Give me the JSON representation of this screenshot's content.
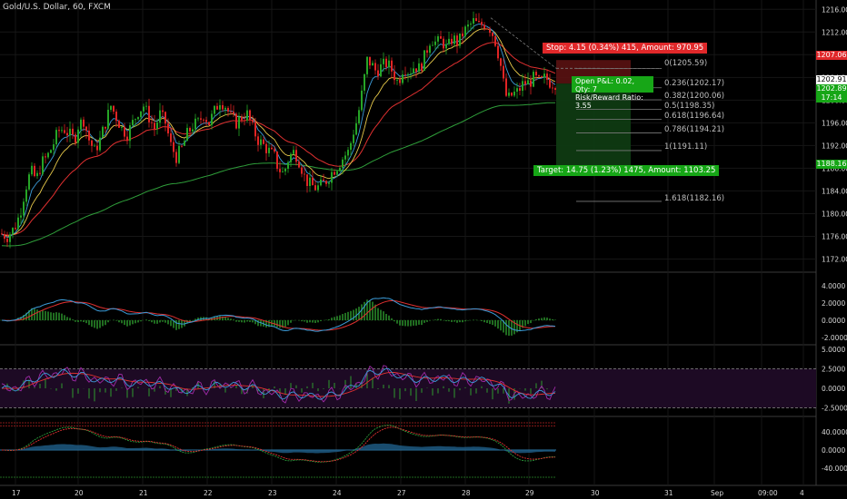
{
  "symbol": "Gold/U.S. Dollar, 60, FXCM",
  "colors": {
    "background": "#000000",
    "candle_up": "#26a526",
    "candle_down": "#e02424",
    "ema_fast": "#3b9bd8",
    "ema_mid": "#e6c84a",
    "ema_slow": "#e03030",
    "ema_long": "#2f9e3a",
    "stop_badge": "#e0282a",
    "target_badge": "#16a616",
    "grid": "#161616"
  },
  "price_axis": {
    "ticks": [
      "1216.00",
      "1212.00",
      "1208.00",
      "1204.00",
      "1200.00",
      "1196.00",
      "1192.00",
      "1188.00",
      "1184.00",
      "1180.00",
      "1176.00",
      "1172.00"
    ]
  },
  "price_tags": {
    "stop": "1207.06",
    "current": "1202.91",
    "bid": "1202.89",
    "timer": "17:14",
    "target": "1188.16"
  },
  "position": {
    "stop_label": "Stop: 4.15 (0.34%) 415, Amount: 970.95",
    "target_label": "Target: 14.75 (1.23%) 1475, Amount: 1103.25",
    "pnl_line1": "Open P&L: 0.02, Qty: 7",
    "pnl_line2": "Risk/Reward Ratio: 3.55"
  },
  "fib_levels": [
    "0(1205.59)",
    "0.236(1202.17)",
    "0.382(1200.06)",
    "0.5(1198.35)",
    "0.618(1196.64)",
    "0.786(1194.21)",
    "1(1191.11)",
    "1.618(1182.16)"
  ],
  "indicators": {
    "macd_ticks": [
      "4.0000",
      "2.0000",
      "0.0000",
      "-2.0000"
    ],
    "osc_ticks": [
      "5.0000",
      "2.5000",
      "0.0000",
      "-2.5000"
    ],
    "stoch_ticks": [
      "40.0000",
      "0.0000",
      "-40.0000"
    ]
  },
  "time_axis": [
    "17",
    "20",
    "21",
    "22",
    "23",
    "24",
    "27",
    "28",
    "29",
    "30",
    "31",
    "Sep",
    "09:00",
    "4"
  ],
  "chart_data": {
    "type": "candlestick",
    "title": "Gold/U.S. Dollar, 60, FXCM",
    "ylim": [
      1170,
      1217
    ],
    "x_labels": [
      "17",
      "20",
      "21",
      "22",
      "23",
      "24",
      "27",
      "28",
      "29",
      "30",
      "31",
      "Sep",
      "09:00",
      "4"
    ],
    "close_path": [
      [
        0,
        1176.5
      ],
      [
        8,
        1176
      ],
      [
        16,
        1177.5
      ],
      [
        22,
        1180
      ],
      [
        28,
        1184.5
      ],
      [
        34,
        1187.5
      ],
      [
        40,
        1186
      ],
      [
        46,
        1189
      ],
      [
        52,
        1190
      ],
      [
        58,
        1192
      ],
      [
        64,
        1194.5
      ],
      [
        70,
        1195
      ],
      [
        76,
        1194
      ],
      [
        82,
        1193
      ],
      [
        86,
        1195.5
      ],
      [
        92,
        1196.5
      ],
      [
        98,
        1193
      ],
      [
        104,
        1191
      ],
      [
        110,
        1193
      ],
      [
        116,
        1196
      ],
      [
        122,
        1199
      ],
      [
        128,
        1197
      ],
      [
        134,
        1195
      ],
      [
        140,
        1194
      ],
      [
        146,
        1196
      ],
      [
        152,
        1198
      ],
      [
        158,
        1199
      ],
      [
        164,
        1197
      ],
      [
        170,
        1195
      ],
      [
        176,
        1197.5
      ],
      [
        182,
        1196
      ],
      [
        188,
        1192
      ],
      [
        194,
        1190
      ],
      [
        200,
        1191.5
      ],
      [
        206,
        1194
      ],
      [
        212,
        1195.5
      ],
      [
        218,
        1196
      ],
      [
        224,
        1197.5
      ],
      [
        230,
        1196
      ],
      [
        236,
        1198
      ],
      [
        242,
        1200
      ],
      [
        248,
        1199
      ],
      [
        254,
        1197
      ],
      [
        260,
        1196
      ],
      [
        266,
        1197
      ],
      [
        272,
        1197.5
      ],
      [
        278,
        1195
      ],
      [
        284,
        1193
      ],
      [
        290,
        1192
      ],
      [
        296,
        1191
      ],
      [
        302,
        1190
      ],
      [
        306,
        1188
      ],
      [
        312,
        1187
      ],
      [
        318,
        1190
      ],
      [
        324,
        1191
      ],
      [
        330,
        1189
      ],
      [
        336,
        1186
      ],
      [
        342,
        1185
      ],
      [
        348,
        1184.5
      ],
      [
        354,
        1185
      ],
      [
        360,
        1186
      ],
      [
        366,
        1187.5
      ],
      [
        372,
        1188.5
      ],
      [
        378,
        1190
      ],
      [
        384,
        1191
      ],
      [
        388,
        1194
      ],
      [
        392,
        1196
      ],
      [
        396,
        1199
      ],
      [
        400,
        1203
      ],
      [
        404,
        1207
      ],
      [
        408,
        1206.5
      ],
      [
        414,
        1205
      ],
      [
        420,
        1206
      ],
      [
        426,
        1206.5
      ],
      [
        432,
        1205
      ],
      [
        438,
        1203
      ],
      [
        444,
        1206
      ],
      [
        450,
        1205
      ],
      [
        456,
        1206
      ],
      [
        462,
        1205.5
      ],
      [
        468,
        1208
      ],
      [
        474,
        1211
      ],
      [
        480,
        1210
      ],
      [
        486,
        1210.5
      ],
      [
        492,
        1209
      ],
      [
        498,
        1211
      ],
      [
        504,
        1210
      ],
      [
        510,
        1212
      ],
      [
        516,
        1213
      ],
      [
        522,
        1214
      ],
      [
        526,
        1213
      ],
      [
        532,
        1213.5
      ],
      [
        538,
        1213
      ],
      [
        544,
        1211
      ],
      [
        550,
        1207
      ],
      [
        554,
        1203
      ],
      [
        558,
        1200
      ],
      [
        564,
        1201
      ],
      [
        570,
        1201.5
      ],
      [
        576,
        1203
      ],
      [
        582,
        1203
      ],
      [
        588,
        1204
      ],
      [
        594,
        1203
      ],
      [
        600,
        1204
      ],
      [
        606,
        1203
      ],
      [
        612,
        1203
      ]
    ],
    "series": [
      {
        "name": "EMA fast",
        "color": "#3b9bd8"
      },
      {
        "name": "EMA mid",
        "color": "#e6c84a"
      },
      {
        "name": "EMA slow",
        "color": "#e03030"
      },
      {
        "name": "EMA long",
        "color": "#2f9e3a"
      }
    ]
  }
}
